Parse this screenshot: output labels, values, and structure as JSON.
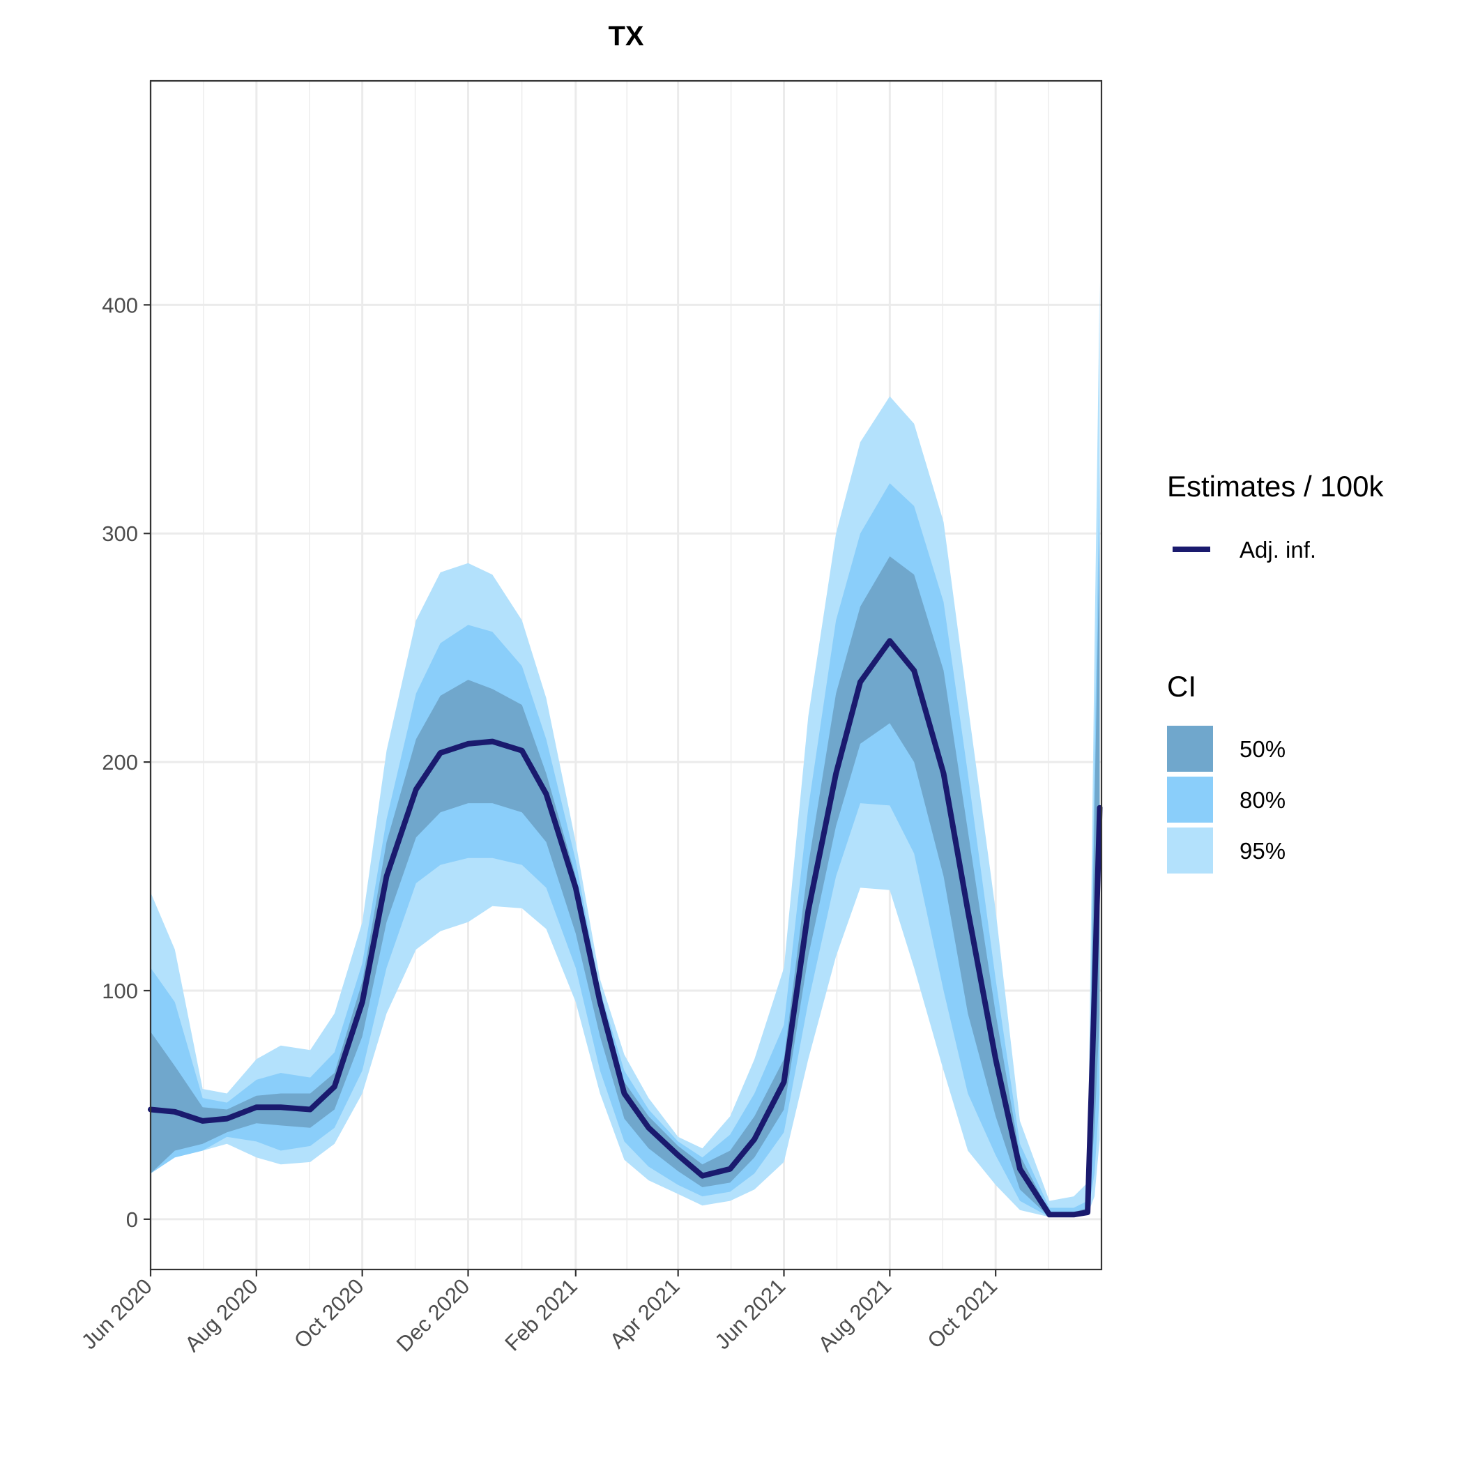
{
  "chart_data": {
    "type": "area",
    "title": "TX",
    "xlabel": "",
    "ylabel": "",
    "x_axis": {
      "type": "date",
      "range": [
        "2020-06-01",
        "2021-12-01"
      ],
      "tick_values": [
        "2020-06-01",
        "2020-08-01",
        "2020-10-01",
        "2020-12-01",
        "2021-02-01",
        "2021-04-01",
        "2021-06-01",
        "2021-08-01",
        "2021-10-01"
      ],
      "tick_labels": [
        "Jun 2020",
        "Aug 2020",
        "Oct 2020",
        "Dec 2020",
        "Feb 2021",
        "Apr 2021",
        "Jun 2021",
        "Aug 2021",
        "Oct 2021"
      ]
    },
    "y_axis": {
      "range": [
        -22,
        498
      ],
      "tick_values": [
        0,
        100,
        200,
        300,
        400
      ],
      "tick_labels": [
        "0",
        "100",
        "200",
        "300",
        "400"
      ]
    },
    "grid": true,
    "legend": {
      "placement": "right",
      "line_group_title": "Estimates / 100k",
      "band_group_title": "CI"
    },
    "x": [
      "2020-06-01",
      "2020-06-15",
      "2020-07-01",
      "2020-07-15",
      "2020-08-01",
      "2020-08-15",
      "2020-09-01",
      "2020-09-15",
      "2020-10-01",
      "2020-10-15",
      "2020-11-01",
      "2020-11-15",
      "2020-12-01",
      "2020-12-15",
      "2021-01-01",
      "2021-01-15",
      "2021-02-01",
      "2021-02-15",
      "2021-03-01",
      "2021-03-15",
      "2021-04-01",
      "2021-04-15",
      "2021-05-01",
      "2021-05-15",
      "2021-06-01",
      "2021-06-15",
      "2021-07-01",
      "2021-07-15",
      "2021-08-01",
      "2021-08-15",
      "2021-09-01",
      "2021-09-15",
      "2021-10-01",
      "2021-10-15",
      "2021-11-01",
      "2021-11-15",
      "2021-11-23",
      "2021-11-27",
      "2021-11-30"
    ],
    "line": {
      "name": "Adj. inf.",
      "color": "#1a1a6e",
      "values": [
        48,
        47,
        43,
        44,
        49,
        49,
        48,
        58,
        95,
        150,
        188,
        204,
        208,
        209,
        205,
        186,
        145,
        95,
        55,
        40,
        28,
        19,
        22,
        35,
        60,
        135,
        195,
        235,
        253,
        240,
        195,
        135,
        70,
        22,
        2,
        2,
        3,
        100,
        180
      ]
    },
    "bands": [
      {
        "name": "95%",
        "color": "#b3e1fc",
        "lower": [
          20,
          27,
          30,
          33,
          27,
          24,
          25,
          33,
          55,
          90,
          118,
          126,
          130,
          137,
          136,
          127,
          95,
          55,
          26,
          17,
          11,
          6,
          8,
          13,
          25,
          70,
          115,
          145,
          144,
          110,
          65,
          30,
          15,
          4,
          1,
          1,
          2,
          10,
          35
        ],
        "upper": [
          143,
          118,
          57,
          55,
          70,
          76,
          74,
          90,
          130,
          205,
          262,
          283,
          287,
          282,
          262,
          228,
          165,
          105,
          72,
          53,
          36,
          31,
          45,
          70,
          110,
          220,
          300,
          340,
          360,
          348,
          305,
          225,
          135,
          43,
          8,
          10,
          16,
          250,
          410
        ]
      },
      {
        "name": "80%",
        "color": "#8acefa",
        "lower": [
          20,
          27,
          30,
          36,
          34,
          30,
          32,
          40,
          65,
          110,
          147,
          155,
          158,
          158,
          155,
          145,
          110,
          65,
          34,
          23,
          15,
          10,
          12,
          20,
          38,
          95,
          150,
          182,
          181,
          160,
          100,
          55,
          28,
          8,
          1,
          1,
          2,
          20,
          55
        ],
        "upper": [
          110,
          95,
          53,
          51,
          61,
          64,
          62,
          73,
          112,
          175,
          230,
          252,
          260,
          257,
          242,
          210,
          157,
          100,
          65,
          48,
          34,
          27,
          37,
          55,
          85,
          180,
          262,
          300,
          322,
          312,
          270,
          195,
          105,
          33,
          5,
          5,
          8,
          200,
          330
        ]
      },
      {
        "name": "50%",
        "color": "#70a7cc",
        "lower": [
          20,
          30,
          33,
          38,
          42,
          41,
          40,
          48,
          80,
          130,
          167,
          178,
          182,
          182,
          178,
          165,
          125,
          80,
          44,
          31,
          21,
          14,
          16,
          27,
          48,
          115,
          172,
          208,
          217,
          200,
          150,
          90,
          45,
          13,
          1,
          1,
          2,
          40,
          90
        ],
        "upper": [
          82,
          67,
          49,
          48,
          54,
          55,
          55,
          64,
          104,
          165,
          210,
          229,
          236,
          232,
          225,
          195,
          150,
          90,
          60,
          45,
          32,
          24,
          30,
          45,
          70,
          155,
          230,
          268,
          290,
          282,
          240,
          170,
          90,
          28,
          3,
          3,
          5,
          180,
          300
        ]
      }
    ]
  }
}
